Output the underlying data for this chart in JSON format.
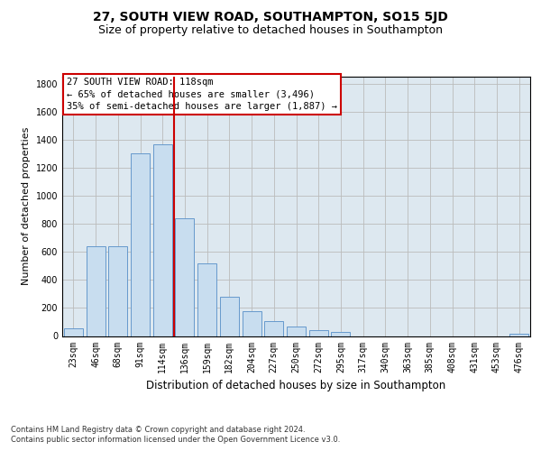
{
  "title1": "27, SOUTH VIEW ROAD, SOUTHAMPTON, SO15 5JD",
  "title2": "Size of property relative to detached houses in Southampton",
  "xlabel": "Distribution of detached houses by size in Southampton",
  "ylabel": "Number of detached properties",
  "categories": [
    "23sqm",
    "46sqm",
    "68sqm",
    "91sqm",
    "114sqm",
    "136sqm",
    "159sqm",
    "182sqm",
    "204sqm",
    "227sqm",
    "250sqm",
    "272sqm",
    "295sqm",
    "317sqm",
    "340sqm",
    "363sqm",
    "385sqm",
    "408sqm",
    "431sqm",
    "453sqm",
    "476sqm"
  ],
  "values": [
    55,
    638,
    638,
    1300,
    1370,
    840,
    520,
    278,
    175,
    105,
    65,
    40,
    30,
    0,
    0,
    0,
    0,
    0,
    0,
    0,
    15
  ],
  "bar_color": "#c8ddef",
  "bar_edge_color": "#6699cc",
  "annotation_line1": "27 SOUTH VIEW ROAD: 118sqm",
  "annotation_line2": "← 65% of detached houses are smaller (3,496)",
  "annotation_line3": "35% of semi-detached houses are larger (1,887) →",
  "vline_color": "#cc0000",
  "annotation_box_edge": "#cc0000",
  "ylim": [
    0,
    1850
  ],
  "yticks": [
    0,
    200,
    400,
    600,
    800,
    1000,
    1200,
    1400,
    1600,
    1800
  ],
  "vline_pos": 4.5,
  "footnote1": "Contains HM Land Registry data © Crown copyright and database right 2024.",
  "footnote2": "Contains public sector information licensed under the Open Government Licence v3.0.",
  "plot_bg_color": "#dde8f0",
  "grid_color": "#bbbbbb",
  "title1_fontsize": 10,
  "title2_fontsize": 9,
  "ylabel_fontsize": 8,
  "xlabel_fontsize": 8.5,
  "tick_fontsize": 7,
  "annotation_fontsize": 7.5,
  "footnote_fontsize": 6
}
